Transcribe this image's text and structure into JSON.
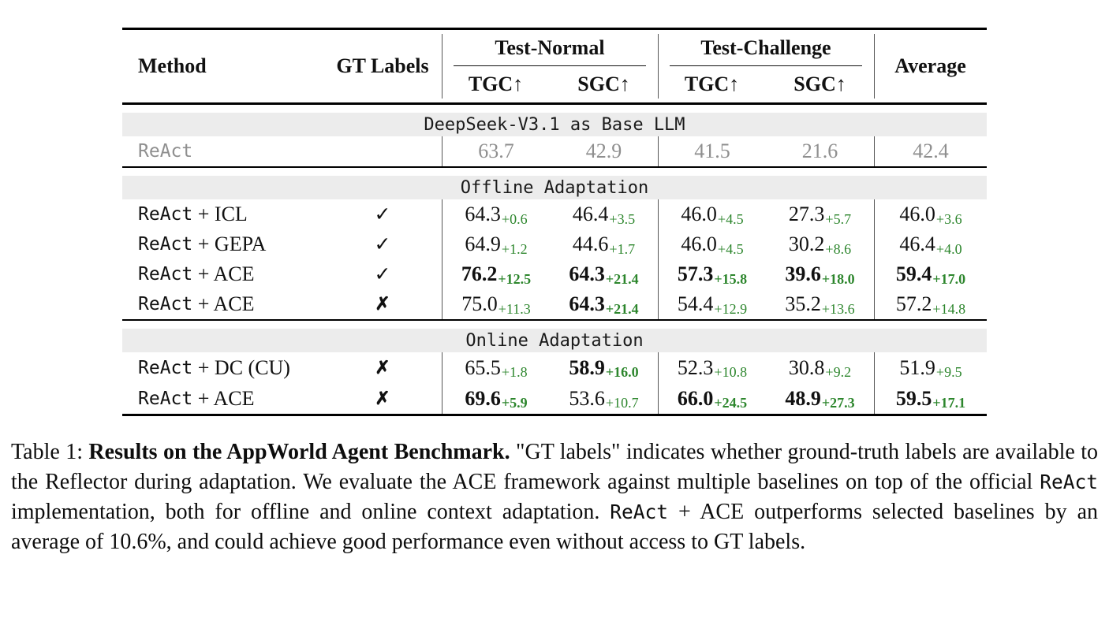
{
  "colors": {
    "accent_green": "#2d862d",
    "muted_gray": "#8f8f8f",
    "band_bg": "#ececec"
  },
  "table": {
    "header": {
      "method": "Method",
      "gt_labels": "GT Labels",
      "group1": "Test-Normal",
      "group2": "Test-Challenge",
      "average": "Average",
      "subcols": [
        "TGC↑",
        "SGC↑",
        "TGC↑",
        "SGC↑"
      ]
    },
    "symbols": {
      "check": "✓",
      "cross": "✗"
    },
    "sections": [
      {
        "band": "DeepSeek-V3.1 as Base LLM",
        "rows": [
          {
            "method_mono": "ReAct",
            "method_serif": "",
            "gt": "",
            "muted": true,
            "cells": [
              {
                "v": "63.7"
              },
              {
                "v": "42.9"
              },
              {
                "v": "41.5"
              },
              {
                "v": "21.6"
              },
              {
                "v": "42.4"
              }
            ]
          }
        ]
      },
      {
        "band": "Offline Adaptation",
        "rows": [
          {
            "method_mono": "ReAct",
            "method_serif": " + ICL",
            "gt": "check",
            "cells": [
              {
                "v": "64.3",
                "d": "+0.6"
              },
              {
                "v": "46.4",
                "d": "+3.5"
              },
              {
                "v": "46.0",
                "d": "+4.5"
              },
              {
                "v": "27.3",
                "d": "+5.7"
              },
              {
                "v": "46.0",
                "d": "+3.6"
              }
            ]
          },
          {
            "method_mono": "ReAct",
            "method_serif": " + GEPA",
            "gt": "check",
            "cells": [
              {
                "v": "64.9",
                "d": "+1.2"
              },
              {
                "v": "44.6",
                "d": "+1.7"
              },
              {
                "v": "46.0",
                "d": "+4.5"
              },
              {
                "v": "30.2",
                "d": "+8.6"
              },
              {
                "v": "46.4",
                "d": "+4.0"
              }
            ]
          },
          {
            "method_mono": "ReAct",
            "method_serif": " + ACE",
            "gt": "check",
            "cells": [
              {
                "v": "76.2",
                "d": "+12.5",
                "b": true
              },
              {
                "v": "64.3",
                "d": "+21.4",
                "b": true
              },
              {
                "v": "57.3",
                "d": "+15.8",
                "b": true
              },
              {
                "v": "39.6",
                "d": "+18.0",
                "b": true
              },
              {
                "v": "59.4",
                "d": "+17.0",
                "b": true
              }
            ]
          },
          {
            "method_mono": "ReAct",
            "method_serif": " + ACE",
            "gt": "cross",
            "cells": [
              {
                "v": "75.0",
                "d": "+11.3"
              },
              {
                "v": "64.3",
                "d": "+21.4",
                "b": true
              },
              {
                "v": "54.4",
                "d": "+12.9"
              },
              {
                "v": "35.2",
                "d": "+13.6"
              },
              {
                "v": "57.2",
                "d": "+14.8"
              }
            ]
          }
        ]
      },
      {
        "band": "Online Adaptation",
        "rows": [
          {
            "method_mono": "ReAct",
            "method_serif": " + DC (CU)",
            "gt": "cross",
            "cells": [
              {
                "v": "65.5",
                "d": "+1.8"
              },
              {
                "v": "58.9",
                "d": "+16.0",
                "b": true
              },
              {
                "v": "52.3",
                "d": "+10.8"
              },
              {
                "v": "30.8",
                "d": "+9.2"
              },
              {
                "v": "51.9",
                "d": "+9.5"
              }
            ]
          },
          {
            "method_mono": "ReAct",
            "method_serif": " + ACE",
            "gt": "cross",
            "cells": [
              {
                "v": "69.6",
                "d": "+5.9",
                "b": true
              },
              {
                "v": "53.6",
                "d": "+10.7"
              },
              {
                "v": "66.0",
                "d": "+24.5",
                "b": true
              },
              {
                "v": "48.9",
                "d": "+27.3",
                "b": true
              },
              {
                "v": "59.5",
                "d": "+17.1",
                "b": true
              }
            ]
          }
        ]
      }
    ]
  },
  "caption": {
    "segments": [
      {
        "t": "Table 1: "
      },
      {
        "t": "Results on the AppWorld Agent Benchmark.",
        "bold": true
      },
      {
        "t": " \"GT labels\" indicates whether ground-truth labels are available to the Reflector during adaptation. We evaluate the ACE framework against multiple baselines on top of the official "
      },
      {
        "t": "ReAct",
        "mono": true
      },
      {
        "t": " implementation, both for offline and online context adaptation. "
      },
      {
        "t": "ReAct",
        "mono": true
      },
      {
        "t": " + ACE outperforms selected baselines by an average of 10.6%, and could achieve good performance even without access to GT labels."
      }
    ]
  }
}
